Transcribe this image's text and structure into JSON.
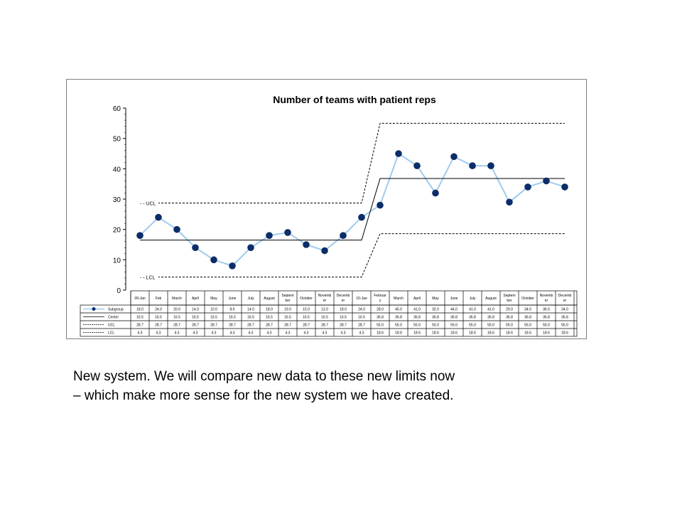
{
  "caption": {
    "line1": "New system. We will compare new data to these new limits now",
    "line2": "– which make more sense for the new system we have created."
  },
  "chart_data": {
    "type": "line",
    "title": "Number of teams with patient reps",
    "xlabel": "",
    "ylabel": "",
    "ylim": [
      0,
      60
    ],
    "yticks": [
      0,
      10,
      20,
      30,
      40,
      50,
      60
    ],
    "grid": false,
    "categories": [
      "09-Jan",
      "Feb",
      "March",
      "April",
      "May",
      "June",
      "July",
      "August",
      "Septem ber",
      "October",
      "Novemb er",
      "Decemb er",
      "10-Jan",
      "Februar y",
      "March",
      "April",
      "May",
      "June",
      "July",
      "August",
      "Septem ber",
      "October",
      "Novemb er",
      "Decemb er"
    ],
    "series": [
      {
        "name": "Subgroup",
        "color": "#0b2d6b",
        "line_color": "#9fcbee",
        "marker": "circle",
        "values": [
          18,
          24,
          20,
          14,
          10,
          8,
          14,
          18,
          19,
          15,
          13,
          18,
          24,
          28,
          45,
          41,
          32,
          44,
          41,
          41,
          29,
          34,
          36,
          34
        ],
        "labels": [
          "18.0",
          "24.0",
          "20.0",
          "14.0",
          "10.0",
          "8.0",
          "14.0",
          "18.0",
          "19.0",
          "15.0",
          "13.0",
          "18.0",
          "24.0",
          "28.0",
          "45.0",
          "41.0",
          "32.0",
          "44.0",
          "41.0",
          "41.0",
          "29.0",
          "34.0",
          "36.0",
          "34.0"
        ]
      },
      {
        "name": "Center",
        "color": "#000000",
        "style": "solid",
        "values": [
          16.5,
          16.5,
          16.5,
          16.5,
          16.5,
          16.5,
          16.5,
          16.5,
          16.5,
          16.5,
          16.5,
          16.5,
          16.5,
          36.8,
          36.8,
          36.8,
          36.8,
          36.8,
          36.8,
          36.8,
          36.8,
          36.8,
          36.8,
          36.8
        ],
        "labels": [
          "16.5",
          "16.5",
          "16.5",
          "16.5",
          "16.5",
          "16.5",
          "16.5",
          "16.5",
          "16.5",
          "16.5",
          "16.5",
          "16.5",
          "16.5",
          "36.8",
          "36.8",
          "36.8",
          "36.8",
          "36.8",
          "36.8",
          "36.8",
          "36.8",
          "36.8",
          "36.8",
          "36.8"
        ]
      },
      {
        "name": "UCL",
        "color": "#000000",
        "style": "dashed",
        "values": [
          28.7,
          28.7,
          28.7,
          28.7,
          28.7,
          28.7,
          28.7,
          28.7,
          28.7,
          28.7,
          28.7,
          28.7,
          28.7,
          55.0,
          55.0,
          55.0,
          55.0,
          55.0,
          55.0,
          55.0,
          55.0,
          55.0,
          55.0,
          55.0
        ],
        "labels": [
          "28.7",
          "28.7",
          "28.7",
          "28.7",
          "28.7",
          "28.7",
          "28.7",
          "28.7",
          "28.7",
          "28.7",
          "28.7",
          "28.7",
          "28.7",
          "55.0",
          "55.0",
          "55.0",
          "55.0",
          "55.0",
          "55.0",
          "55.0",
          "55.0",
          "55.0",
          "55.0",
          "55.0"
        ]
      },
      {
        "name": "LCL",
        "color": "#000000",
        "style": "dashed",
        "values": [
          4.3,
          4.3,
          4.3,
          4.3,
          4.3,
          4.3,
          4.3,
          4.3,
          4.3,
          4.3,
          4.3,
          4.3,
          4.3,
          18.6,
          18.6,
          18.6,
          18.6,
          18.6,
          18.6,
          18.6,
          18.6,
          18.6,
          18.6,
          18.6
        ],
        "labels": [
          "4.3",
          "4.3",
          "4.3",
          "4.3",
          "4.3",
          "4.3",
          "4.3",
          "4.3",
          "4.3",
          "4.3",
          "4.3",
          "4.3",
          "4.3",
          "18.6",
          "18.6",
          "18.6",
          "18.6",
          "18.6",
          "18.6",
          "18.6",
          "18.6",
          "18.6",
          "18.6",
          "18.6"
        ]
      }
    ],
    "annotations": [
      {
        "text": "UCL",
        "series": "UCL",
        "at": "start"
      },
      {
        "text": "LCL",
        "series": "LCL",
        "at": "start"
      }
    ],
    "legend": "data-table"
  }
}
